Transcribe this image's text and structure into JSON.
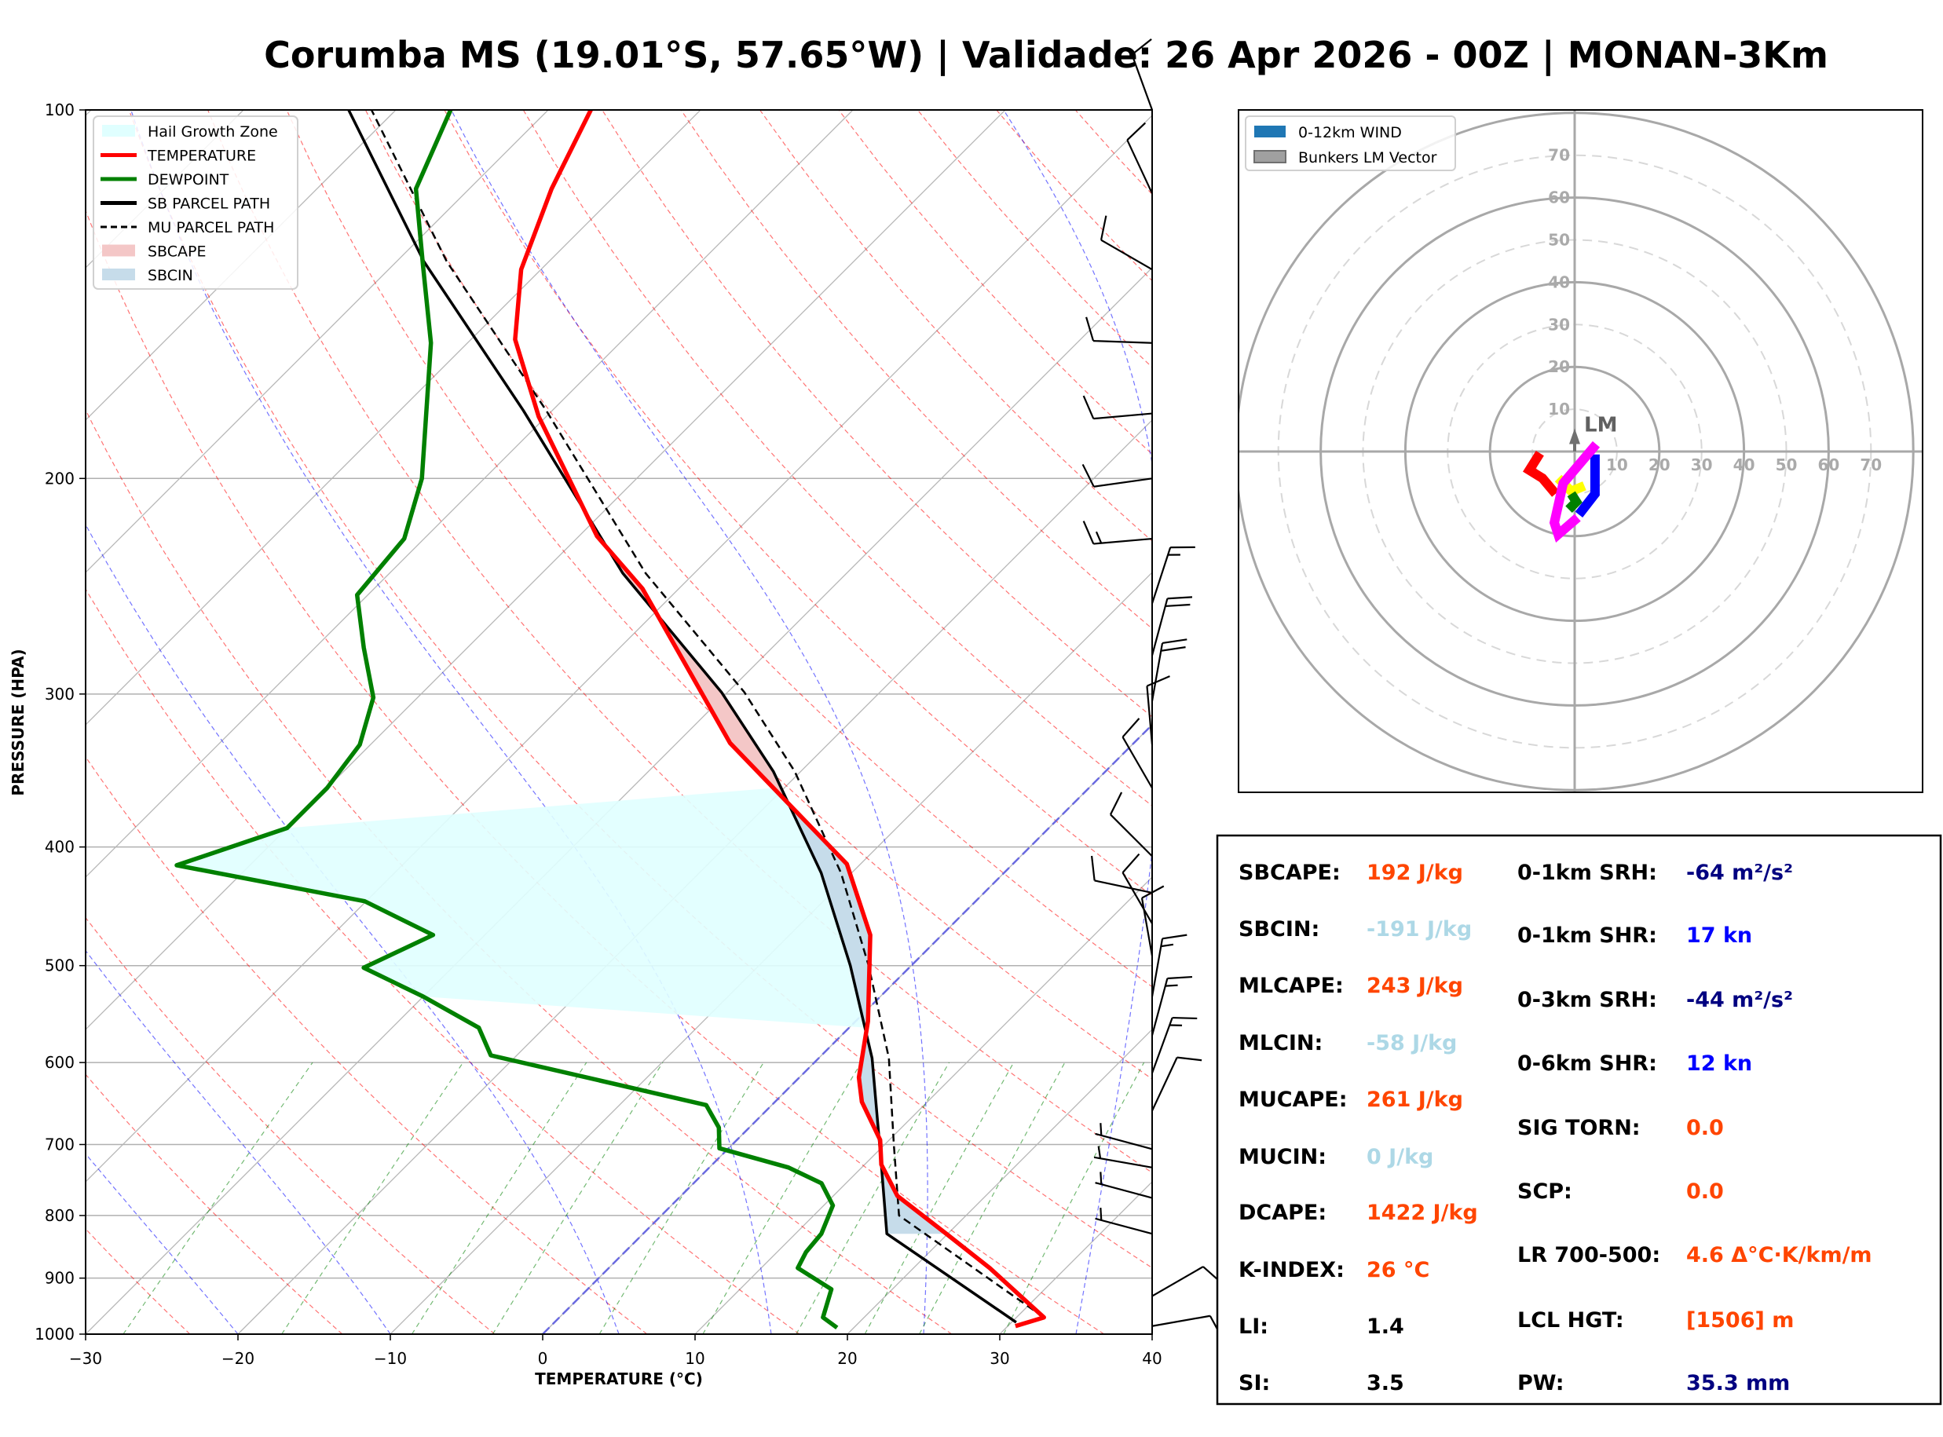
{
  "chart_data": {
    "type": "skewt",
    "title": "Corumba MS (19.01°S, 57.65°W) | Validade: 26 Apr 2026 - 00Z | MONAN-3Km",
    "xlabel": "TEMPERATURE (°C)",
    "ylabel": "PRESSURE (HPA)",
    "xlim": [
      -30,
      40
    ],
    "ylim": [
      1000,
      100
    ],
    "xticks": [
      -30,
      -20,
      -10,
      0,
      10,
      20,
      30,
      40
    ],
    "xtick_labels": [
      "−30",
      "−20",
      "−10",
      "0",
      "10",
      "20",
      "30",
      "40"
    ],
    "yticks": [
      100,
      200,
      300,
      400,
      500,
      600,
      700,
      800,
      900,
      1000
    ],
    "ytick_labels": [
      "100",
      "200",
      "300",
      "400",
      "500",
      "600",
      "700",
      "800",
      "900",
      "1000"
    ],
    "grid": true,
    "legend_position": "top-left",
    "legend": [
      {
        "label": "Hail Growth Zone",
        "kind": "patch",
        "color": "#e0ffff"
      },
      {
        "label": "TEMPERATURE",
        "kind": "line",
        "color": "#ff0000"
      },
      {
        "label": "DEWPOINT",
        "kind": "line",
        "color": "#008000"
      },
      {
        "label": "SB PARCEL PATH",
        "kind": "line",
        "color": "#000000"
      },
      {
        "label": "MU PARCEL PATH",
        "kind": "dash",
        "color": "#000000"
      },
      {
        "label": "SBCAPE",
        "kind": "patch",
        "color": "#f4c7c7"
      },
      {
        "label": "SBCIN",
        "kind": "patch",
        "color": "#c6dcea"
      }
    ],
    "series": {
      "temperature": {
        "color": "#ff0000",
        "p": [
          985,
          969,
          883,
          828,
          771,
          727,
          694,
          646,
          617,
          555,
          472,
          413,
          384,
          329,
          246,
          223,
          178,
          154,
          135,
          116,
          100
        ],
        "t": [
          30.5,
          31.8,
          25.0,
          19.9,
          14.2,
          11.1,
          9.4,
          5.7,
          3.9,
          0.8,
          -4.7,
          -10.9,
          -15.9,
          -26.5,
          -42.4,
          -48.8,
          -60.5,
          -67.1,
          -71.3,
          -74.6,
          -77.2
        ]
      },
      "dewpoint": {
        "color": "#008000",
        "p": [
          988,
          969,
          919,
          883,
          857,
          828,
          785,
          753,
          731,
          705,
          678,
          650,
          592,
          562,
          530,
          502,
          472,
          443,
          414,
          386,
          358,
          330,
          302,
          275,
          249,
          224,
          200,
          155,
          134,
          116,
          100
        ],
        "t": [
          18.9,
          17.3,
          16.0,
          12.4,
          11.9,
          11.7,
          10.6,
          8.4,
          5.2,
          -0.6,
          -2.0,
          -4.3,
          -21.7,
          -24.3,
          -30.0,
          -35.8,
          -33.4,
          -40.1,
          -54.8,
          -50.0,
          -50.0,
          -50.7,
          -52.9,
          -56.8,
          -60.7,
          -61.3,
          -64.1,
          -72.4,
          -78.0,
          -83.5,
          -86.4
        ]
      },
      "sb_parcel": {
        "color": "#000000",
        "p": [
          978,
          828,
          727,
          595,
          500,
          420,
          347,
          299,
          239,
          176,
          133,
          100
        ],
        "t": [
          30.3,
          16.0,
          11.1,
          3.5,
          -4.0,
          -12.0,
          -21.8,
          -30.4,
          -44.7,
          -61.9,
          -78.2,
          -93.1
        ]
      },
      "mu_parcel": {
        "color": "#000000",
        "p": [
          969,
          800,
          700,
          595,
          500,
          420,
          347,
          299,
          239,
          176,
          133,
          100
        ],
        "t": [
          31.8,
          15.6,
          10.6,
          4.6,
          -2.8,
          -10.7,
          -20.4,
          -28.9,
          -43.2,
          -60.4,
          -76.7,
          -91.6
        ]
      }
    },
    "hail_growth_zone": {
      "temp_side_p": [
        358,
        562
      ],
      "dew_side_p": [
        386,
        530
      ]
    },
    "sbcape_layer_p": [
      372,
      198
    ],
    "sbcin_layer_p": [
      828,
      372
    ],
    "wind_barbs": [
      {
        "p": 100,
        "dir": 340,
        "spd": 10
      },
      {
        "p": 117,
        "dir": 335,
        "spd": 10
      },
      {
        "p": 135,
        "dir": 300,
        "spd": 10
      },
      {
        "p": 155,
        "dir": 272,
        "spd": 10
      },
      {
        "p": 177,
        "dir": 265,
        "spd": 10
      },
      {
        "p": 200,
        "dir": 262,
        "spd": 10
      },
      {
        "p": 224,
        "dir": 265,
        "spd": 15
      },
      {
        "p": 253,
        "dir": 18,
        "spd": 15
      },
      {
        "p": 279,
        "dir": 15,
        "spd": 20
      },
      {
        "p": 304,
        "dir": 10,
        "spd": 20
      },
      {
        "p": 330,
        "dir": 355,
        "spd": 10
      },
      {
        "p": 358,
        "dir": 330,
        "spd": 10
      },
      {
        "p": 407,
        "dir": 315,
        "spd": 10
      },
      {
        "p": 436,
        "dir": 282,
        "spd": 10
      },
      {
        "p": 462,
        "dir": 330,
        "spd": 10
      },
      {
        "p": 491,
        "dir": 350,
        "spd": 10
      },
      {
        "p": 530,
        "dir": 10,
        "spd": 15
      },
      {
        "p": 570,
        "dir": 15,
        "spd": 15
      },
      {
        "p": 612,
        "dir": 20,
        "spd": 15
      },
      {
        "p": 657,
        "dir": 25,
        "spd": 10
      },
      {
        "p": 706,
        "dir": 285,
        "spd": 5
      },
      {
        "p": 731,
        "dir": 280,
        "spd": 5
      },
      {
        "p": 774,
        "dir": 285,
        "spd": 5
      },
      {
        "p": 828,
        "dir": 285,
        "spd": 5
      },
      {
        "p": 931,
        "dir": 60,
        "spd": 10
      },
      {
        "p": 985,
        "dir": 80,
        "spd": 10
      }
    ]
  },
  "hodograph": {
    "rings_solid": [
      20,
      40,
      60,
      80
    ],
    "rings_dashed": [
      10,
      30,
      50,
      70
    ],
    "ring_labels": [
      "10",
      "20",
      "30",
      "40",
      "50",
      "60",
      "70"
    ],
    "legend": [
      {
        "label": "0-12km WIND",
        "color": "#1f77b4"
      },
      {
        "label": "Bunkers LM Vector",
        "color": "#a0a0a0"
      }
    ],
    "lm_label": "LM",
    "lm_vector_kn": [
      0,
      4
    ],
    "segments": [
      {
        "color": "#ff0000",
        "u": [
          -8.2,
          -10.7,
          -7.6,
          -4.5
        ],
        "v": [
          -0.4,
          -4.4,
          -6.3,
          -10.0
        ]
      },
      {
        "color": "#ffff00",
        "u": [
          -3.9,
          -0.8,
          2.3
        ],
        "v": [
          -6.3,
          -9.4,
          -8.1
        ]
      },
      {
        "color": "#008000",
        "u": [
          -0.8,
          0.4,
          -1.4
        ],
        "v": [
          -10.0,
          -11.9,
          -13.7
        ]
      },
      {
        "color": "#0000ff",
        "u": [
          1.0,
          4.8,
          4.8,
          4.8
        ],
        "v": [
          -14.9,
          -10.0,
          -6.3,
          -0.7
        ]
      },
      {
        "color": "#ff00ff",
        "u": [
          5.1,
          -2.7,
          -4.8,
          -3.9,
          0.7
        ],
        "v": [
          1.7,
          -7.5,
          -16.8,
          -19.6,
          -15.6
        ]
      }
    ]
  },
  "stats": {
    "left": [
      {
        "label": "SBCAPE:",
        "value": "192 J/kg",
        "color": "#ff4500"
      },
      {
        "label": "SBCIN:",
        "value": "-191 J/kg",
        "color": "#add8e6"
      },
      {
        "label": "MLCAPE:",
        "value": "243 J/kg",
        "color": "#ff4500"
      },
      {
        "label": "MLCIN:",
        "value": "-58 J/kg",
        "color": "#add8e6"
      },
      {
        "label": "MUCAPE:",
        "value": "261 J/kg",
        "color": "#ff4500"
      },
      {
        "label": "MUCIN:",
        "value": "0 J/kg",
        "color": "#add8e6"
      },
      {
        "label": "DCAPE:",
        "value": "1422 J/kg",
        "color": "#ff4500"
      },
      {
        "label": "K-INDEX:",
        "value": "26 °C",
        "color": "#ff4500"
      },
      {
        "label": "LI:",
        "value": "1.4",
        "color": "#000000"
      },
      {
        "label": "SI:",
        "value": "3.5",
        "color": "#000000"
      }
    ],
    "right": [
      {
        "label": "0-1km SRH:",
        "value": "-64 m²/s²",
        "color": "#000080"
      },
      {
        "label": "0-1km SHR:",
        "value": "17 kn",
        "color": "#0000ff"
      },
      {
        "label": "0-3km SRH:",
        "value": "-44 m²/s²",
        "color": "#000080"
      },
      {
        "label": "0-6km SHR:",
        "value": "12 kn",
        "color": "#0000ff"
      },
      {
        "label": "SIG TORN:",
        "value": "0.0",
        "color": "#ff4500"
      },
      {
        "label": "SCP:",
        "value": "0.0",
        "color": "#ff4500"
      },
      {
        "label": "LR 700-500:",
        "value": "4.6 Δ°C·K/km/m",
        "color": "#ff4500"
      },
      {
        "label": "LCL HGT:",
        "value": "[1506] m",
        "color": "#ff4500"
      },
      {
        "label": "PW:",
        "value": "35.3 mm",
        "color": "#000080"
      }
    ]
  }
}
